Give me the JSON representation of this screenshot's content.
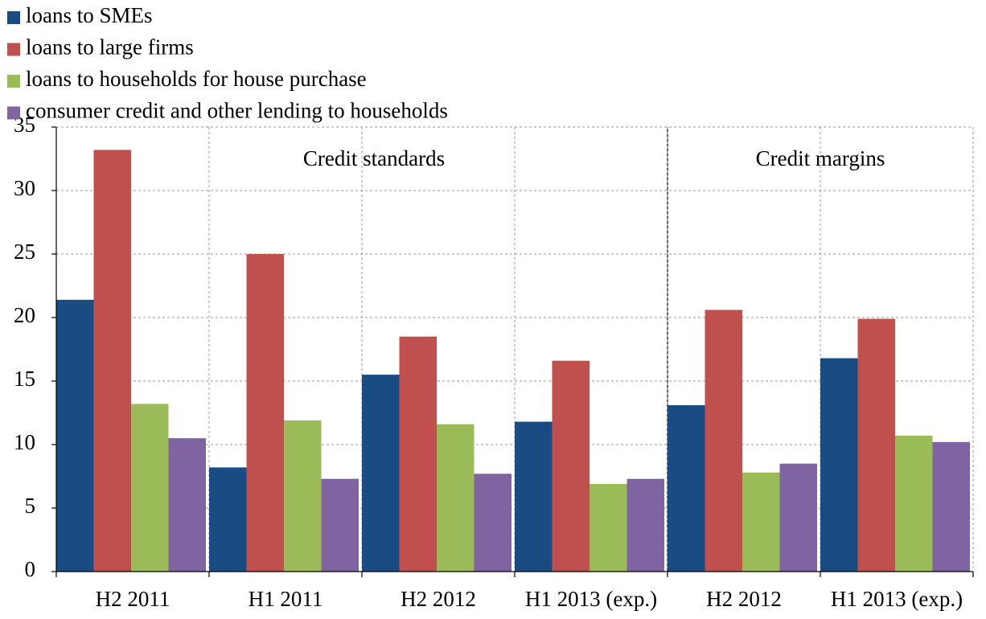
{
  "chart_data": {
    "type": "bar",
    "categories": [
      "H2 2011",
      "H1 2011",
      "H2 2012",
      "H1 2013 (exp.)",
      "H2 2012",
      "H1 2013 (exp.)"
    ],
    "series": [
      {
        "name": "loans to SMEs",
        "color": "#1a4c84",
        "values": [
          21.4,
          8.2,
          15.5,
          11.8,
          13.1,
          16.8
        ]
      },
      {
        "name": "loans to large firms",
        "color": "#c0504d",
        "values": [
          33.2,
          25.0,
          18.5,
          16.6,
          20.6,
          19.9
        ]
      },
      {
        "name": "loans to households for house purchase",
        "color": "#9bbb59",
        "values": [
          13.2,
          11.9,
          11.6,
          6.9,
          7.8,
          10.7
        ]
      },
      {
        "name": "consumer credit and other lending to households",
        "color": "#8064a2",
        "values": [
          10.5,
          7.3,
          7.7,
          7.3,
          8.5,
          10.2
        ]
      }
    ],
    "annotations": [
      "Credit standards",
      "Credit margins"
    ],
    "ylim": [
      0,
      35
    ],
    "yticks": [
      0,
      5,
      10,
      15,
      20,
      25,
      30,
      35
    ],
    "grid": true
  }
}
